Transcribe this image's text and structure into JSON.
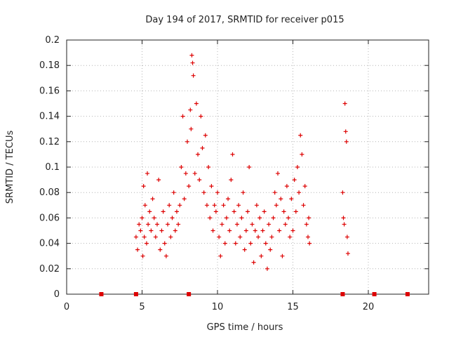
{
  "chart_data": {
    "type": "scatter",
    "title": "Day 194 of 2017, SRMTID for receiver p015",
    "xlabel": "GPS time / hours",
    "ylabel": "SRMTID / TECUs",
    "xlim": [
      0,
      24
    ],
    "ylim": [
      0,
      0.2
    ],
    "grid": true,
    "xticks": [
      0,
      5,
      10,
      15,
      20
    ],
    "xtick_labels": [
      "0",
      "5",
      "10",
      "15",
      "20"
    ],
    "yticks": [
      0,
      0.02,
      0.04,
      0.06,
      0.08,
      0.1,
      0.12,
      0.14,
      0.16,
      0.18,
      0.2
    ],
    "ytick_labels": [
      "0",
      "0.02",
      "0.04",
      "0.06",
      "0.08",
      "0.1",
      "0.12",
      "0.14",
      "0.16",
      "0.18",
      "0.2"
    ],
    "series_color": "#dd0000",
    "series": [
      {
        "name": "SRMTID",
        "marker": "plus",
        "points": [
          [
            4.6,
            0.045
          ],
          [
            4.7,
            0.035
          ],
          [
            4.8,
            0.055
          ],
          [
            4.9,
            0.05
          ],
          [
            5.0,
            0.06
          ],
          [
            5.05,
            0.03
          ],
          [
            5.1,
            0.085
          ],
          [
            5.15,
            0.045
          ],
          [
            5.2,
            0.07
          ],
          [
            5.3,
            0.04
          ],
          [
            5.35,
            0.095
          ],
          [
            5.4,
            0.055
          ],
          [
            5.5,
            0.065
          ],
          [
            5.6,
            0.05
          ],
          [
            5.7,
            0.075
          ],
          [
            5.8,
            0.06
          ],
          [
            5.9,
            0.045
          ],
          [
            6.0,
            0.055
          ],
          [
            6.1,
            0.09
          ],
          [
            6.2,
            0.035
          ],
          [
            6.3,
            0.05
          ],
          [
            6.4,
            0.065
          ],
          [
            6.5,
            0.04
          ],
          [
            6.6,
            0.03
          ],
          [
            6.7,
            0.055
          ],
          [
            6.8,
            0.07
          ],
          [
            6.9,
            0.045
          ],
          [
            7.0,
            0.06
          ],
          [
            7.1,
            0.08
          ],
          [
            7.2,
            0.05
          ],
          [
            7.3,
            0.065
          ],
          [
            7.4,
            0.055
          ],
          [
            7.5,
            0.07
          ],
          [
            7.6,
            0.1
          ],
          [
            7.7,
            0.14
          ],
          [
            7.8,
            0.075
          ],
          [
            7.9,
            0.095
          ],
          [
            8.0,
            0.12
          ],
          [
            8.1,
            0.085
          ],
          [
            8.2,
            0.145
          ],
          [
            8.25,
            0.13
          ],
          [
            8.3,
            0.188
          ],
          [
            8.35,
            0.182
          ],
          [
            8.4,
            0.172
          ],
          [
            8.5,
            0.095
          ],
          [
            8.6,
            0.15
          ],
          [
            8.7,
            0.11
          ],
          [
            8.8,
            0.09
          ],
          [
            8.9,
            0.14
          ],
          [
            9.0,
            0.115
          ],
          [
            9.1,
            0.08
          ],
          [
            9.2,
            0.125
          ],
          [
            9.3,
            0.07
          ],
          [
            9.4,
            0.1
          ],
          [
            9.5,
            0.06
          ],
          [
            9.6,
            0.085
          ],
          [
            9.7,
            0.05
          ],
          [
            9.8,
            0.07
          ],
          [
            9.9,
            0.065
          ],
          [
            10.0,
            0.08
          ],
          [
            10.1,
            0.045
          ],
          [
            10.2,
            0.03
          ],
          [
            10.3,
            0.055
          ],
          [
            10.4,
            0.07
          ],
          [
            10.5,
            0.04
          ],
          [
            10.6,
            0.06
          ],
          [
            10.7,
            0.075
          ],
          [
            10.8,
            0.05
          ],
          [
            10.9,
            0.09
          ],
          [
            11.0,
            0.11
          ],
          [
            11.1,
            0.065
          ],
          [
            11.2,
            0.04
          ],
          [
            11.3,
            0.055
          ],
          [
            11.4,
            0.07
          ],
          [
            11.5,
            0.045
          ],
          [
            11.6,
            0.06
          ],
          [
            11.7,
            0.08
          ],
          [
            11.8,
            0.035
          ],
          [
            11.9,
            0.05
          ],
          [
            12.0,
            0.065
          ],
          [
            12.1,
            0.1
          ],
          [
            12.2,
            0.04
          ],
          [
            12.3,
            0.055
          ],
          [
            12.4,
            0.025
          ],
          [
            12.5,
            0.05
          ],
          [
            12.6,
            0.07
          ],
          [
            12.7,
            0.045
          ],
          [
            12.8,
            0.06
          ],
          [
            12.9,
            0.03
          ],
          [
            13.0,
            0.05
          ],
          [
            13.1,
            0.065
          ],
          [
            13.2,
            0.04
          ],
          [
            13.3,
            0.02
          ],
          [
            13.4,
            0.055
          ],
          [
            13.5,
            0.035
          ],
          [
            13.6,
            0.045
          ],
          [
            13.7,
            0.06
          ],
          [
            13.8,
            0.08
          ],
          [
            13.9,
            0.07
          ],
          [
            14.0,
            0.095
          ],
          [
            14.1,
            0.05
          ],
          [
            14.2,
            0.075
          ],
          [
            14.3,
            0.03
          ],
          [
            14.4,
            0.065
          ],
          [
            14.5,
            0.055
          ],
          [
            14.6,
            0.085
          ],
          [
            14.7,
            0.06
          ],
          [
            14.8,
            0.045
          ],
          [
            14.9,
            0.075
          ],
          [
            15.0,
            0.05
          ],
          [
            15.1,
            0.09
          ],
          [
            15.2,
            0.065
          ],
          [
            15.3,
            0.1
          ],
          [
            15.4,
            0.08
          ],
          [
            15.5,
            0.125
          ],
          [
            15.6,
            0.11
          ],
          [
            15.7,
            0.07
          ],
          [
            15.8,
            0.085
          ],
          [
            15.9,
            0.055
          ],
          [
            16.0,
            0.045
          ],
          [
            16.05,
            0.06
          ],
          [
            16.1,
            0.04
          ],
          [
            18.3,
            0.08
          ],
          [
            18.35,
            0.06
          ],
          [
            18.4,
            0.055
          ],
          [
            18.45,
            0.15
          ],
          [
            18.5,
            0.128
          ],
          [
            18.55,
            0.12
          ],
          [
            18.6,
            0.045
          ],
          [
            18.65,
            0.032
          ]
        ]
      },
      {
        "name": "zero-level markers",
        "marker": "square",
        "points": [
          [
            2.3,
            0
          ],
          [
            4.6,
            0
          ],
          [
            8.1,
            0
          ],
          [
            18.3,
            0
          ],
          [
            20.4,
            0
          ],
          [
            22.6,
            0
          ]
        ]
      }
    ]
  }
}
